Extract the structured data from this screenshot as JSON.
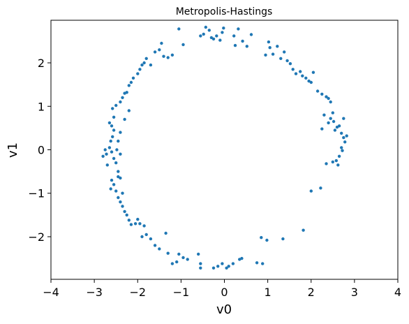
{
  "chart_data": {
    "type": "scatter",
    "title": "Metropolis-Hastings",
    "xlabel": "v0",
    "ylabel": "v1",
    "xlim": [
      -4,
      4
    ],
    "ylim": [
      -2.98,
      2.98
    ],
    "x_ticks": [
      -4,
      -3,
      -2,
      -1,
      0,
      1,
      2,
      3,
      4
    ],
    "x_tick_labels": [
      "−4",
      "−3",
      "−2",
      "−1",
      "0",
      "1",
      "2",
      "3",
      "4"
    ],
    "y_ticks": [
      -2,
      -1,
      0,
      1,
      2
    ],
    "y_tick_labels": [
      "−2",
      "−1",
      "0",
      "1",
      "2"
    ],
    "grid": false,
    "marker_color": "#1f77b4",
    "series": [
      {
        "points": [
          [
            -0.55,
            2.62
          ],
          [
            -0.48,
            2.66
          ],
          [
            -0.43,
            2.82
          ],
          [
            -0.35,
            2.75
          ],
          [
            -0.3,
            2.58
          ],
          [
            -0.25,
            2.55
          ],
          [
            -0.18,
            2.62
          ],
          [
            -0.1,
            2.52
          ],
          [
            -0.05,
            2.7
          ],
          [
            -0.02,
            2.8
          ],
          [
            0.22,
            2.62
          ],
          [
            0.25,
            2.4
          ],
          [
            0.32,
            2.78
          ],
          [
            0.42,
            2.5
          ],
          [
            0.52,
            2.38
          ],
          [
            0.62,
            2.65
          ],
          [
            -1.05,
            2.78
          ],
          [
            -0.95,
            2.42
          ],
          [
            0.95,
            2.18
          ],
          [
            1.02,
            2.48
          ],
          [
            1.05,
            2.35
          ],
          [
            1.12,
            2.2
          ],
          [
            1.22,
            2.38
          ],
          [
            1.3,
            2.1
          ],
          [
            1.38,
            2.25
          ],
          [
            1.45,
            2.05
          ],
          [
            1.52,
            1.98
          ],
          [
            1.58,
            1.85
          ],
          [
            1.65,
            1.75
          ],
          [
            1.75,
            1.8
          ],
          [
            1.8,
            1.7
          ],
          [
            1.88,
            1.65
          ],
          [
            1.95,
            1.58
          ],
          [
            2.0,
            1.55
          ],
          [
            2.05,
            1.78
          ],
          [
            2.15,
            1.35
          ],
          [
            2.25,
            1.28
          ],
          [
            2.35,
            1.22
          ],
          [
            2.4,
            1.18
          ],
          [
            2.45,
            1.1
          ],
          [
            2.3,
            0.8
          ],
          [
            2.4,
            0.62
          ],
          [
            2.45,
            0.72
          ],
          [
            2.5,
            0.85
          ],
          [
            2.52,
            0.65
          ],
          [
            2.55,
            0.45
          ],
          [
            2.6,
            0.52
          ],
          [
            2.65,
            0.55
          ],
          [
            2.7,
            0.38
          ],
          [
            2.75,
            0.72
          ],
          [
            2.75,
            0.28
          ],
          [
            2.78,
            0.18
          ],
          [
            2.82,
            0.32
          ],
          [
            2.7,
            0.05
          ],
          [
            2.72,
            -0.02
          ],
          [
            2.65,
            -0.15
          ],
          [
            2.58,
            -0.25
          ],
          [
            2.62,
            -0.35
          ],
          [
            2.5,
            -0.28
          ],
          [
            2.35,
            -0.32
          ],
          [
            2.25,
            0.48
          ],
          [
            2.22,
            -0.88
          ],
          [
            2.0,
            -0.95
          ],
          [
            1.82,
            -1.85
          ],
          [
            1.35,
            -2.05
          ],
          [
            0.98,
            -2.08
          ],
          [
            0.85,
            -2.02
          ],
          [
            0.75,
            -2.6
          ],
          [
            0.88,
            -2.62
          ],
          [
            0.4,
            -2.5
          ],
          [
            0.35,
            -2.52
          ],
          [
            0.2,
            -2.62
          ],
          [
            0.1,
            -2.68
          ],
          [
            0.05,
            -2.72
          ],
          [
            -0.05,
            -2.62
          ],
          [
            -0.15,
            -2.68
          ],
          [
            -0.25,
            -2.72
          ],
          [
            -0.55,
            -2.62
          ],
          [
            -0.55,
            -2.72
          ],
          [
            -0.6,
            -2.4
          ],
          [
            -0.85,
            -2.52
          ],
          [
            -0.95,
            -2.48
          ],
          [
            -1.05,
            -2.4
          ],
          [
            -1.1,
            -2.58
          ],
          [
            -1.2,
            -2.62
          ],
          [
            -1.3,
            -2.38
          ],
          [
            -1.35,
            -1.92
          ],
          [
            -1.5,
            -2.28
          ],
          [
            -1.6,
            -2.2
          ],
          [
            -1.7,
            -2.05
          ],
          [
            -1.8,
            -1.95
          ],
          [
            -1.85,
            -1.75
          ],
          [
            -1.9,
            -2.0
          ],
          [
            -1.95,
            -1.7
          ],
          [
            -2.0,
            -1.6
          ],
          [
            -2.05,
            -1.7
          ],
          [
            -2.15,
            -1.72
          ],
          [
            -2.2,
            -1.62
          ],
          [
            -2.25,
            -1.5
          ],
          [
            -2.3,
            -1.42
          ],
          [
            -2.35,
            -1.3
          ],
          [
            -2.4,
            -1.2
          ],
          [
            -2.45,
            -1.1
          ],
          [
            -2.5,
            -0.95
          ],
          [
            -2.55,
            -0.8
          ],
          [
            -2.4,
            -0.65
          ],
          [
            -2.45,
            -0.5
          ],
          [
            -2.5,
            -0.3
          ],
          [
            -2.55,
            -0.2
          ],
          [
            -2.6,
            -0.05
          ],
          [
            -2.65,
            0.05
          ],
          [
            -2.62,
            0.2
          ],
          [
            -2.58,
            0.3
          ],
          [
            -2.55,
            0.45
          ],
          [
            -2.6,
            0.55
          ],
          [
            -2.65,
            0.62
          ],
          [
            -2.55,
            0.75
          ],
          [
            -2.58,
            0.95
          ],
          [
            -2.5,
            1.02
          ],
          [
            -2.4,
            1.1
          ],
          [
            -2.35,
            1.2
          ],
          [
            -2.3,
            1.3
          ],
          [
            -2.25,
            1.32
          ],
          [
            -2.2,
            1.48
          ],
          [
            -2.15,
            1.55
          ],
          [
            -2.1,
            1.65
          ],
          [
            -2.0,
            1.75
          ],
          [
            -1.95,
            1.85
          ],
          [
            -1.9,
            1.95
          ],
          [
            -1.85,
            2.0
          ],
          [
            -1.8,
            2.1
          ],
          [
            -1.7,
            1.95
          ],
          [
            -1.6,
            2.25
          ],
          [
            -1.5,
            2.3
          ],
          [
            -1.45,
            2.45
          ],
          [
            -1.4,
            2.15
          ],
          [
            -1.3,
            2.12
          ],
          [
            -1.2,
            2.18
          ],
          [
            -2.8,
            -0.15
          ],
          [
            -2.75,
            0.0
          ],
          [
            -2.7,
            -0.35
          ],
          [
            -2.72,
            -0.1
          ],
          [
            -2.6,
            -0.7
          ],
          [
            -2.62,
            -0.9
          ],
          [
            -2.45,
            -0.62
          ],
          [
            -2.35,
            -1.0
          ],
          [
            -2.2,
            0.9
          ],
          [
            -2.3,
            0.7
          ],
          [
            -2.4,
            0.4
          ],
          [
            -2.45,
            0.2
          ],
          [
            -2.48,
            0.0
          ],
          [
            -2.4,
            -0.1
          ]
        ]
      }
    ]
  }
}
